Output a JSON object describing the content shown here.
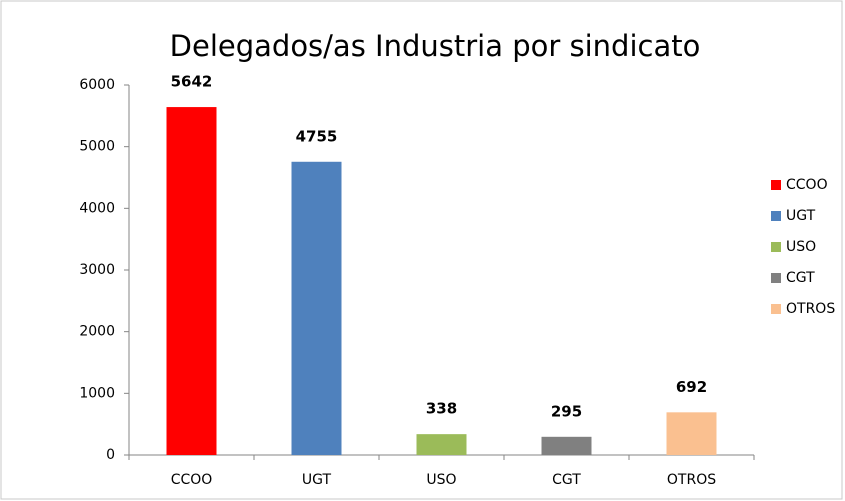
{
  "chart_data": {
    "type": "bar",
    "title": "Delegados/as Industria por sindicato",
    "categories": [
      "CCOO",
      "UGT",
      "USO",
      "CGT",
      "OTROS"
    ],
    "values": [
      5642,
      4755,
      338,
      295,
      692
    ],
    "colors": [
      "#ff0000",
      "#4f81bd",
      "#9bbb59",
      "#808080",
      "#fac090"
    ],
    "ylim": [
      0,
      6000
    ],
    "yticks": [
      0,
      1000,
      2000,
      3000,
      4000,
      5000,
      6000
    ],
    "grid": false,
    "legend": "right"
  }
}
